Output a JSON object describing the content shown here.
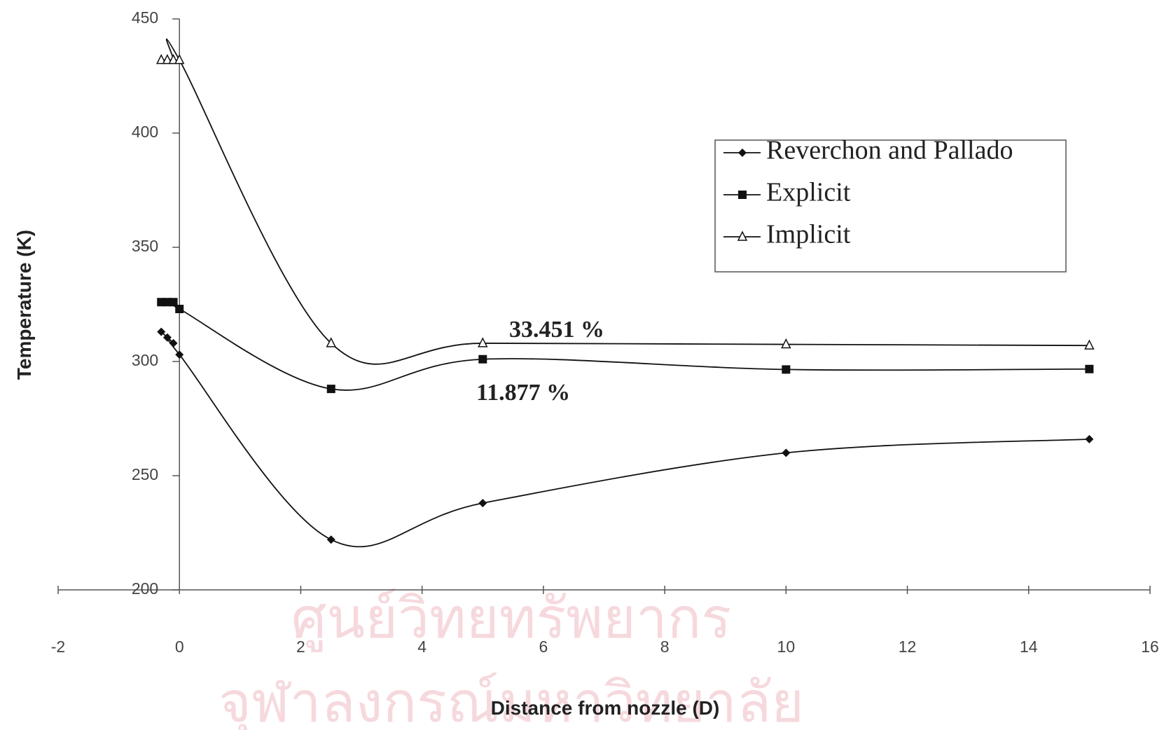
{
  "chart_data": {
    "type": "line",
    "x_label": "Distance from nozzle (D)",
    "y_label": "Temperature (K)",
    "xlim": [
      -2,
      16
    ],
    "xticks": [
      -2,
      0,
      2,
      4,
      6,
      8,
      10,
      12,
      14,
      16
    ],
    "ylim": [
      200,
      450
    ],
    "yticks": [
      200,
      250,
      300,
      350,
      400,
      450
    ],
    "grid": false,
    "smooth": true,
    "legend": "upper-right",
    "series": [
      {
        "name": "Reverchon and Pallado",
        "color": "#111111",
        "marker": "diamond",
        "x": [
          -0.3,
          -0.2,
          -0.1,
          0,
          2.5,
          5,
          10,
          15
        ],
        "values": [
          313,
          310.5,
          308,
          303,
          222,
          238,
          260,
          266
        ]
      },
      {
        "name": "Explicit",
        "color": "#111111",
        "marker": "square",
        "x": [
          -0.3,
          -0.2,
          -0.1,
          0,
          2.5,
          5,
          10,
          15
        ],
        "values": [
          326,
          326,
          326,
          323,
          288,
          301,
          296.5,
          296.7
        ]
      },
      {
        "name": "Implicit",
        "color": "#111111",
        "marker": "triangle",
        "x": [
          -0.3,
          -0.2,
          -0.1,
          0,
          2.5,
          5,
          10,
          15
        ],
        "values": [
          432,
          432,
          432,
          432,
          308,
          308,
          307.5,
          307
        ]
      }
    ],
    "annotations": [
      "33.451 %",
      "11.877 %"
    ],
    "watermark": [
      "ศูนย์วิทยทรัพยากร",
      "จุฬาลงกรณ์มหาวิทยาลัย"
    ]
  }
}
